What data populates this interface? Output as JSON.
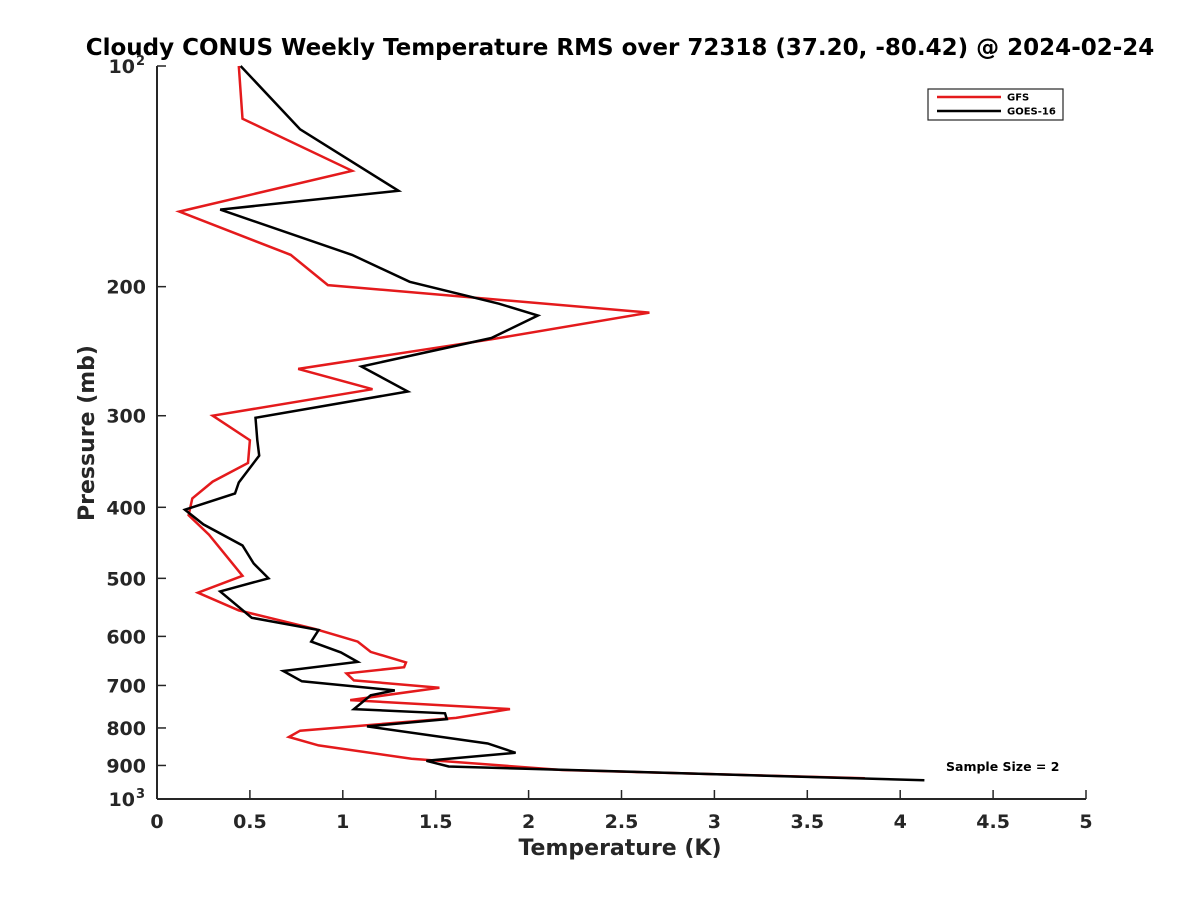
{
  "chart_data": {
    "type": "line",
    "title": "Cloudy CONUS Weekly Temperature RMS over 72318 (37.20, -80.42) @ 2024-02-24",
    "xlabel": "Temperature (K)",
    "ylabel": "Pressure (mb)",
    "xlim": [
      0,
      5
    ],
    "ylim": [
      100,
      1000
    ],
    "y_scale": "log",
    "y_reversed": true,
    "x_ticks": [
      0,
      0.5,
      1,
      1.5,
      2,
      2.5,
      3,
      3.5,
      4,
      4.5,
      5
    ],
    "x_tick_labels": [
      "0",
      "0.5",
      "1",
      "1.5",
      "2",
      "2.5",
      "3",
      "3.5",
      "4",
      "4.5",
      "5"
    ],
    "y_ticks": [
      {
        "value": 100,
        "label": "10",
        "sup": "2"
      },
      {
        "value": 200,
        "label": "200",
        "sup": ""
      },
      {
        "value": 300,
        "label": "300",
        "sup": ""
      },
      {
        "value": 400,
        "label": "400",
        "sup": ""
      },
      {
        "value": 500,
        "label": "500",
        "sup": ""
      },
      {
        "value": 600,
        "label": "600",
        "sup": ""
      },
      {
        "value": 700,
        "label": "700",
        "sup": ""
      },
      {
        "value": 800,
        "label": "800",
        "sup": ""
      },
      {
        "value": 900,
        "label": "900",
        "sup": ""
      },
      {
        "value": 1000,
        "label": "10",
        "sup": "3"
      }
    ],
    "grid": false,
    "legend_position": "top-right",
    "annotation": "Sample Size = 2",
    "series": [
      {
        "name": "GFS",
        "color": "#e41a1c",
        "points": [
          [
            0.44,
            100
          ],
          [
            0.46,
            118
          ],
          [
            1.05,
            139
          ],
          [
            0.12,
            158
          ],
          [
            0.72,
            181
          ],
          [
            0.92,
            199
          ],
          [
            2.65,
            217
          ],
          [
            1.8,
            236
          ],
          [
            0.76,
            259
          ],
          [
            1.16,
            276
          ],
          [
            0.3,
            300
          ],
          [
            0.5,
            324
          ],
          [
            0.49,
            348
          ],
          [
            0.3,
            369
          ],
          [
            0.19,
            389
          ],
          [
            0.17,
            410
          ],
          [
            0.28,
            436
          ],
          [
            0.37,
            465
          ],
          [
            0.46,
            496
          ],
          [
            0.22,
            523
          ],
          [
            0.44,
            553
          ],
          [
            0.85,
            586
          ],
          [
            1.08,
            610
          ],
          [
            1.15,
            630
          ],
          [
            1.34,
            651
          ],
          [
            1.33,
            661
          ],
          [
            1.02,
            674
          ],
          [
            1.06,
            689
          ],
          [
            1.52,
            705
          ],
          [
            1.04,
            733
          ],
          [
            1.9,
            754
          ],
          [
            1.61,
            775
          ],
          [
            0.77,
            807
          ],
          [
            0.71,
            823
          ],
          [
            0.87,
            845
          ],
          [
            1.37,
            881
          ],
          [
            2.18,
            913
          ],
          [
            3.81,
            937
          ]
        ]
      },
      {
        "name": "GOES-16",
        "color": "#000000",
        "points": [
          [
            0.45,
            100
          ],
          [
            0.77,
            122
          ],
          [
            1.3,
            148
          ],
          [
            0.34,
            157
          ],
          [
            1.05,
            181
          ],
          [
            1.36,
            197
          ],
          [
            1.84,
            211
          ],
          [
            2.05,
            219
          ],
          [
            1.8,
            235
          ],
          [
            1.1,
            257
          ],
          [
            1.35,
            278
          ],
          [
            0.53,
            302
          ],
          [
            0.54,
            324
          ],
          [
            0.55,
            340
          ],
          [
            0.44,
            370
          ],
          [
            0.42,
            383
          ],
          [
            0.15,
            403
          ],
          [
            0.25,
            422
          ],
          [
            0.46,
            451
          ],
          [
            0.52,
            477
          ],
          [
            0.6,
            500
          ],
          [
            0.34,
            521
          ],
          [
            0.51,
            566
          ],
          [
            0.87,
            588
          ],
          [
            0.83,
            610
          ],
          [
            0.99,
            631
          ],
          [
            1.08,
            650
          ],
          [
            0.68,
            669
          ],
          [
            0.78,
            691
          ],
          [
            1.28,
            711
          ],
          [
            1.15,
            722
          ],
          [
            1.06,
            754
          ],
          [
            1.55,
            764
          ],
          [
            1.56,
            778
          ],
          [
            1.13,
            796
          ],
          [
            1.78,
            840
          ],
          [
            1.93,
            865
          ],
          [
            1.45,
            887
          ],
          [
            1.57,
            903
          ],
          [
            4.13,
            943
          ]
        ]
      }
    ]
  }
}
